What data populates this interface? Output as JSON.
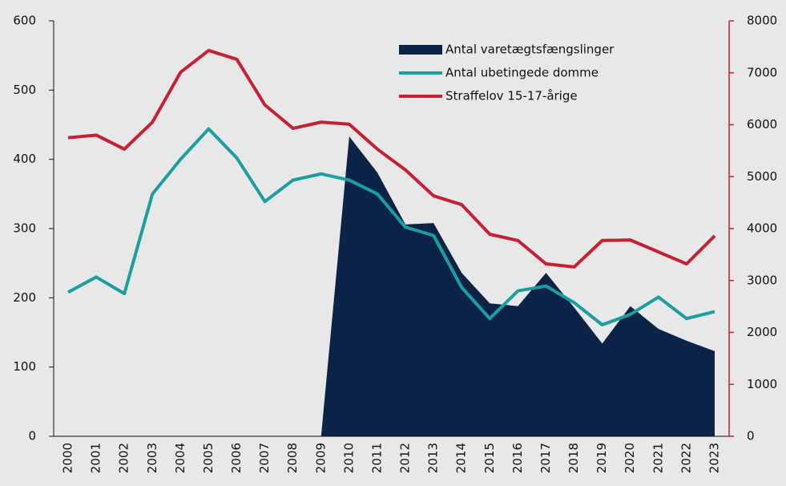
{
  "chart_data": {
    "type": "line",
    "categories": [
      "2000",
      "2001",
      "2002",
      "2003",
      "2004",
      "2005",
      "2006",
      "2007",
      "2008",
      "2009",
      "2010",
      "2011",
      "2012",
      "2013",
      "2014",
      "2015",
      "2016",
      "2017",
      "2018",
      "2019",
      "2020",
      "2021",
      "2022",
      "2023"
    ],
    "series": [
      {
        "name": "Antal varetægtsfængslinger",
        "type": "area",
        "color": "#0b2346",
        "axis": "y",
        "values": [
          null,
          null,
          null,
          null,
          null,
          null,
          null,
          null,
          null,
          0,
          433,
          381,
          306,
          308,
          236,
          192,
          188,
          236,
          186,
          134,
          188,
          155,
          138,
          123
        ]
      },
      {
        "name": "Antal ubetingede domme",
        "type": "line",
        "color": "#1a9e9f",
        "axis": "y",
        "values": [
          208,
          230,
          206,
          350,
          400,
          444,
          402,
          339,
          370,
          379,
          370,
          350,
          302,
          290,
          215,
          170,
          210,
          217,
          193,
          161,
          176,
          201,
          170,
          180
        ]
      },
      {
        "name": "Straffelov 15-17-årige",
        "type": "line",
        "color": "#c52033",
        "axis": "y2",
        "values": [
          5750,
          5800,
          5530,
          6050,
          7010,
          7430,
          7260,
          6380,
          5930,
          6050,
          6010,
          5530,
          5130,
          4630,
          4460,
          3890,
          3770,
          3320,
          3260,
          3770,
          3780,
          3550,
          3320,
          3860
        ]
      }
    ],
    "ylim": [
      0,
      600
    ],
    "yticks": [
      0,
      100,
      200,
      300,
      400,
      500,
      600
    ],
    "y2lim": [
      0,
      8000
    ],
    "y2ticks": [
      0,
      1000,
      2000,
      3000,
      4000,
      5000,
      6000,
      7000,
      8000
    ],
    "y2color": "#c52033",
    "legend": "top-right"
  }
}
